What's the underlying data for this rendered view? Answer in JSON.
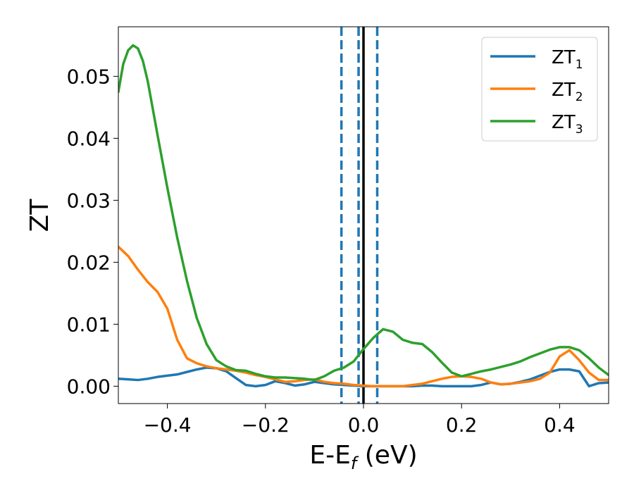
{
  "chart_data": {
    "type": "line",
    "xlabel_main": "E-E",
    "xlabel_sub": "f",
    "xlabel_unit": " (eV)",
    "ylabel": "ZT",
    "xlim": [
      -0.5,
      0.5
    ],
    "ylim": [
      -0.0028,
      0.058
    ],
    "x_ticks": [
      -0.4,
      -0.2,
      0.0,
      0.2,
      0.4
    ],
    "x_tick_labels": [
      "−0.4",
      "−0.2",
      "0.0",
      "0.2",
      "0.4"
    ],
    "y_ticks": [
      0.0,
      0.01,
      0.02,
      0.03,
      0.04,
      0.05
    ],
    "y_tick_labels": [
      "0.00",
      "0.01",
      "0.02",
      "0.03",
      "0.04",
      "0.05"
    ],
    "grid": false,
    "legend_position": "top-right",
    "vertical_lines": [
      {
        "x": -0.045,
        "style": "dashed",
        "color": "#1f77b4"
      },
      {
        "x": -0.01,
        "style": "dashed",
        "color": "#1f77b4"
      },
      {
        "x": 0.028,
        "style": "dashed",
        "color": "#1f77b4"
      },
      {
        "x": 0.0,
        "style": "solid",
        "color": "#000000"
      }
    ],
    "series": [
      {
        "name": "ZT",
        "subscript": "1",
        "color": "#1f77b4",
        "x": [
          -0.5,
          -0.48,
          -0.46,
          -0.44,
          -0.42,
          -0.4,
          -0.38,
          -0.36,
          -0.34,
          -0.32,
          -0.3,
          -0.28,
          -0.26,
          -0.24,
          -0.22,
          -0.2,
          -0.18,
          -0.16,
          -0.14,
          -0.12,
          -0.1,
          -0.08,
          -0.06,
          -0.04,
          -0.02,
          0.0,
          0.02,
          0.04,
          0.06,
          0.08,
          0.1,
          0.12,
          0.14,
          0.16,
          0.18,
          0.2,
          0.22,
          0.24,
          0.26,
          0.28,
          0.3,
          0.32,
          0.34,
          0.36,
          0.38,
          0.4,
          0.42,
          0.44,
          0.46,
          0.48,
          0.5
        ],
        "y": [
          0.0012,
          0.0011,
          0.001,
          0.0012,
          0.0015,
          0.0017,
          0.0019,
          0.0023,
          0.0027,
          0.003,
          0.0029,
          0.0024,
          0.0013,
          0.0002,
          0.0,
          0.0002,
          0.0008,
          0.0005,
          0.0001,
          0.0003,
          0.0007,
          0.0005,
          0.0003,
          0.0002,
          0.0001,
          0.0,
          0.0,
          0.0,
          0.0,
          0.0,
          0.0,
          0.0001,
          0.0001,
          0.0,
          0.0,
          0.0,
          0.0,
          0.0002,
          0.0006,
          0.0003,
          0.0004,
          0.0007,
          0.0011,
          0.0017,
          0.0023,
          0.0027,
          0.0027,
          0.0024,
          0.0,
          0.0005,
          0.0006
        ]
      },
      {
        "name": "ZT",
        "subscript": "2",
        "color": "#ff7f0e",
        "x": [
          -0.5,
          -0.48,
          -0.46,
          -0.44,
          -0.42,
          -0.4,
          -0.38,
          -0.36,
          -0.34,
          -0.32,
          -0.3,
          -0.28,
          -0.26,
          -0.24,
          -0.22,
          -0.2,
          -0.18,
          -0.16,
          -0.14,
          -0.12,
          -0.1,
          -0.08,
          -0.06,
          -0.04,
          -0.02,
          0.0,
          0.02,
          0.04,
          0.06,
          0.08,
          0.1,
          0.12,
          0.14,
          0.16,
          0.18,
          0.2,
          0.22,
          0.24,
          0.26,
          0.28,
          0.3,
          0.32,
          0.34,
          0.36,
          0.38,
          0.4,
          0.42,
          0.44,
          0.46,
          0.48,
          0.5
        ],
        "y": [
          0.0225,
          0.021,
          0.0188,
          0.0168,
          0.0152,
          0.0125,
          0.0075,
          0.0045,
          0.0037,
          0.0032,
          0.0029,
          0.0027,
          0.0025,
          0.0022,
          0.0018,
          0.0015,
          0.0011,
          0.0007,
          0.0008,
          0.001,
          0.0011,
          0.0007,
          0.0005,
          0.0004,
          0.0002,
          0.0001,
          0.0,
          0.0,
          0.0,
          0.0,
          0.0002,
          0.0004,
          0.0008,
          0.0012,
          0.0015,
          0.0016,
          0.0015,
          0.0012,
          0.0006,
          0.0003,
          0.0004,
          0.0006,
          0.0008,
          0.0012,
          0.0022,
          0.0048,
          0.0058,
          0.0042,
          0.0022,
          0.001,
          0.001
        ]
      },
      {
        "name": "ZT",
        "subscript": "3",
        "color": "#2ca02c",
        "x": [
          -0.5,
          -0.49,
          -0.48,
          -0.47,
          -0.46,
          -0.45,
          -0.44,
          -0.42,
          -0.4,
          -0.38,
          -0.36,
          -0.34,
          -0.32,
          -0.3,
          -0.28,
          -0.26,
          -0.24,
          -0.22,
          -0.2,
          -0.18,
          -0.16,
          -0.14,
          -0.12,
          -0.1,
          -0.08,
          -0.06,
          -0.04,
          -0.02,
          0.0,
          0.02,
          0.04,
          0.06,
          0.08,
          0.1,
          0.12,
          0.14,
          0.16,
          0.18,
          0.2,
          0.22,
          0.24,
          0.26,
          0.28,
          0.3,
          0.32,
          0.34,
          0.36,
          0.38,
          0.4,
          0.42,
          0.44,
          0.46,
          0.48,
          0.5
        ],
        "y": [
          0.0475,
          0.052,
          0.0542,
          0.055,
          0.0545,
          0.0525,
          0.0492,
          0.0405,
          0.032,
          0.024,
          0.017,
          0.011,
          0.0068,
          0.0042,
          0.0032,
          0.0026,
          0.0025,
          0.002,
          0.0016,
          0.0014,
          0.0014,
          0.0013,
          0.0012,
          0.001,
          0.0016,
          0.0025,
          0.003,
          0.004,
          0.006,
          0.0078,
          0.0092,
          0.0088,
          0.0075,
          0.007,
          0.0068,
          0.0055,
          0.0038,
          0.0022,
          0.0016,
          0.002,
          0.0024,
          0.0027,
          0.0031,
          0.0035,
          0.004,
          0.0047,
          0.0053,
          0.0059,
          0.0063,
          0.0063,
          0.0058,
          0.0045,
          0.003,
          0.0018
        ]
      }
    ]
  }
}
